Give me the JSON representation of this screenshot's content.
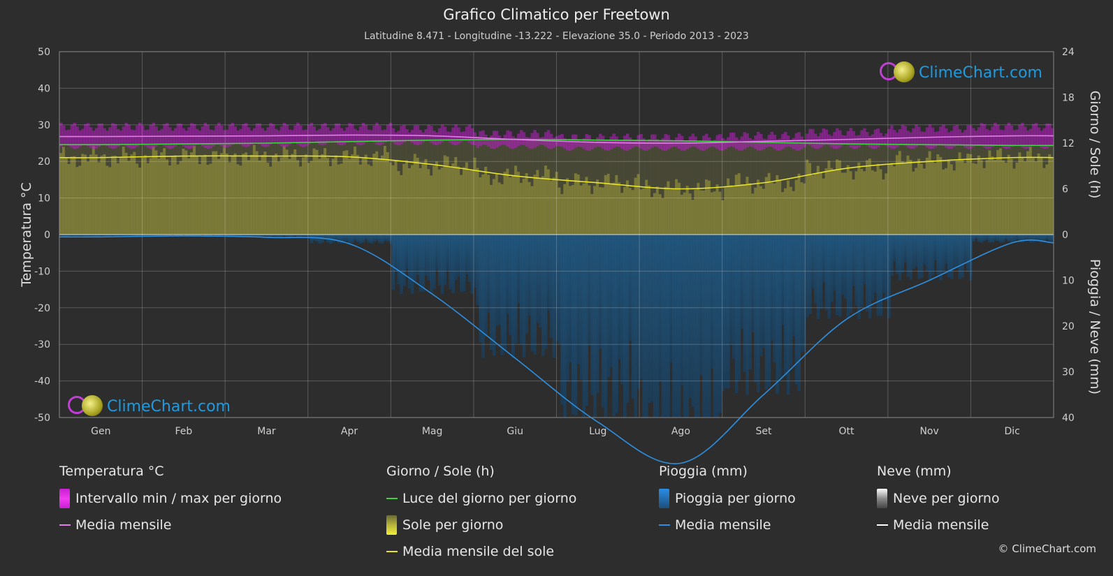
{
  "header": {
    "title": "Grafico Climatico per Freetown",
    "subtitle": "Latitudine 8.471 - Longitudine -13.222 - Elevazione 35.0 - Periodo 2013 - 2023"
  },
  "chart_data": {
    "type": "area",
    "title": "Grafico Climatico per Freetown",
    "months": [
      "Gen",
      "Feb",
      "Mar",
      "Apr",
      "Mag",
      "Giu",
      "Lug",
      "Ago",
      "Set",
      "Ott",
      "Nov",
      "Dic"
    ],
    "axes": {
      "left": {
        "label": "Temperatura °C",
        "ticks": [
          50,
          40,
          30,
          20,
          10,
          0,
          -10,
          -20,
          -30,
          -40,
          -50
        ],
        "range": [
          -50,
          50
        ]
      },
      "right_top": {
        "label": "Giorno / Sole (h)",
        "ticks": [
          24,
          18,
          12,
          6,
          0
        ],
        "range": [
          0,
          24
        ]
      },
      "right_bottom": {
        "label": "Pioggia / Neve (mm)",
        "ticks": [
          0,
          10,
          20,
          30,
          40
        ],
        "range": [
          0,
          40
        ]
      }
    },
    "series": [
      {
        "name": "Media mensile",
        "group": "Temperatura °C",
        "unit": "°C",
        "color": "#e27ee8",
        "values": [
          26.8,
          26.9,
          27.0,
          27.2,
          27.0,
          26.0,
          25.2,
          25.0,
          25.5,
          26.0,
          26.6,
          27.0
        ]
      },
      {
        "name": "Intervallo min / max per giorno",
        "group": "Temperatura °C",
        "unit": "°C",
        "color": "#d61fd6",
        "min": [
          24.0,
          24.0,
          24.5,
          25.0,
          25.0,
          24.0,
          23.5,
          23.5,
          23.5,
          24.0,
          24.0,
          24.0
        ],
        "max": [
          29.5,
          29.5,
          29.5,
          29.5,
          29.0,
          27.5,
          26.5,
          26.5,
          27.0,
          28.0,
          29.0,
          29.5
        ]
      },
      {
        "name": "Luce del giorno per giorno",
        "group": "Giorno / Sole (h)",
        "unit": "h",
        "color": "#3fd43f",
        "values": [
          11.8,
          11.9,
          12.0,
          12.2,
          12.4,
          12.5,
          12.4,
          12.3,
          12.1,
          11.9,
          11.8,
          11.7
        ]
      },
      {
        "name": "Media mensile del sole",
        "group": "Giorno / Sole (h)",
        "unit": "h",
        "color": "#e8e42a",
        "values": [
          10.1,
          10.3,
          10.3,
          10.2,
          9.2,
          7.7,
          6.8,
          6.0,
          6.8,
          8.7,
          9.6,
          10.1
        ]
      },
      {
        "name": "Media mensile",
        "group": "Pioggia (mm)",
        "unit": "mm",
        "color": "#2e8fe0",
        "values": [
          0.5,
          0.3,
          0.6,
          2.0,
          13.0,
          27.0,
          41.0,
          50.0,
          35.0,
          18.5,
          10.0,
          1.8
        ]
      }
    ],
    "grid": true
  },
  "legend": {
    "temp": {
      "title": "Temperatura °C",
      "range_label": "Intervallo min / max per giorno",
      "mean_label": "Media mensile"
    },
    "sun": {
      "title": "Giorno / Sole (h)",
      "daylight_label": "Luce del giorno per giorno",
      "sun_label": "Sole per giorno",
      "sun_mean_label": "Media mensile del sole"
    },
    "rain": {
      "title": "Pioggia (mm)",
      "rain_label": "Pioggia per giorno",
      "mean_label": "Media mensile"
    },
    "snow": {
      "title": "Neve (mm)",
      "snow_label": "Neve per giorno",
      "mean_label": "Media mensile"
    }
  },
  "logo": {
    "text": "ClimeChart.com"
  },
  "copyright": "© ClimeChart.com"
}
